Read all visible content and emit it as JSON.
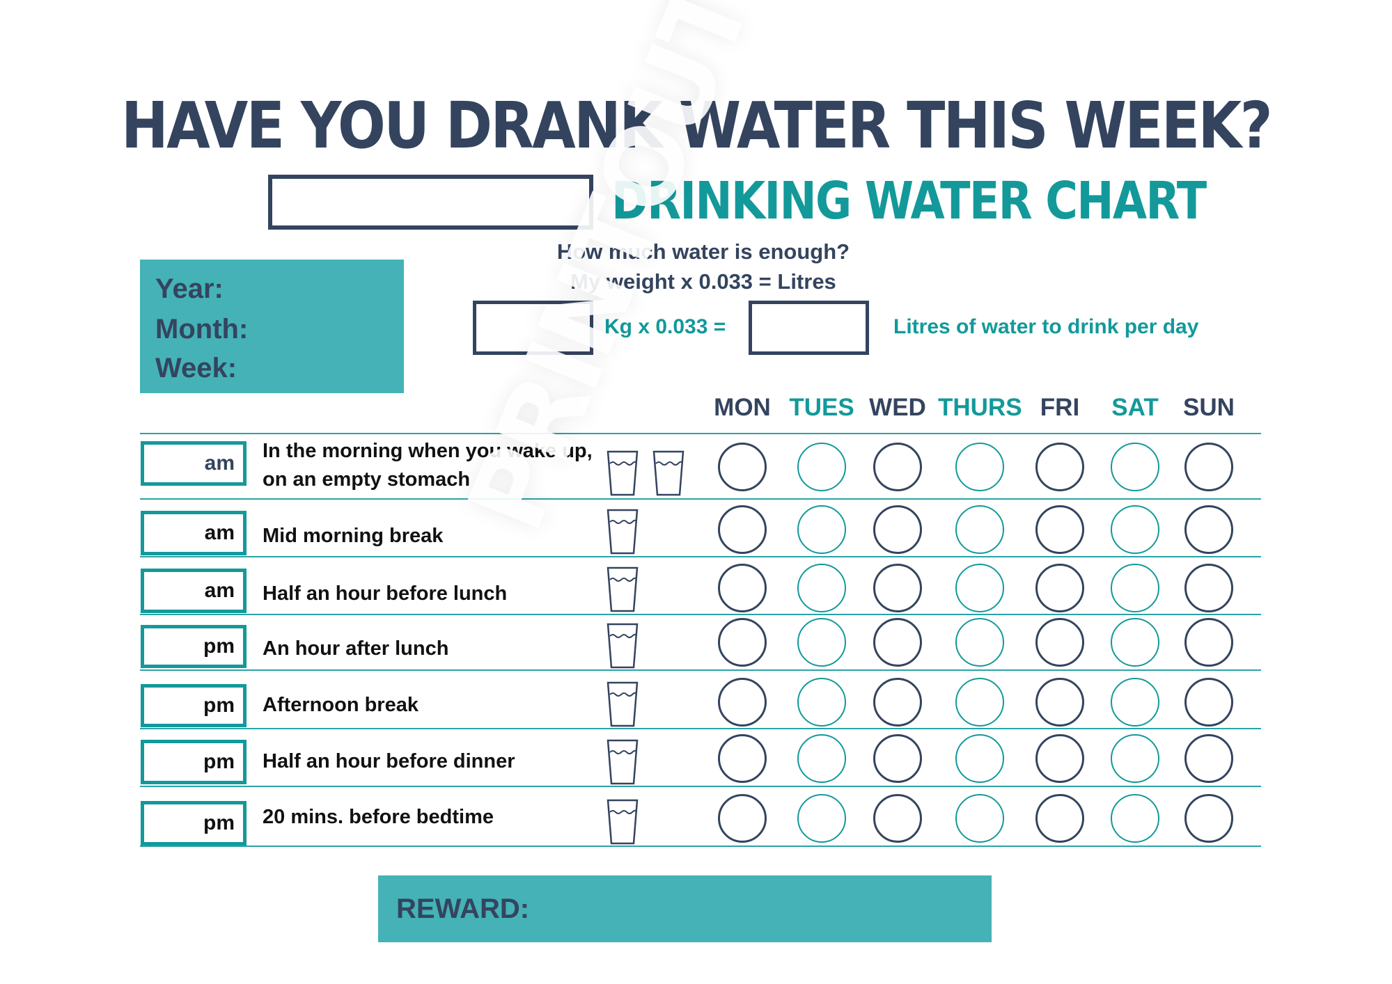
{
  "header": {
    "title": "HAVE YOU DRANK WATER THIS WEEK?",
    "subtitle": "DRINKING WATER CHART"
  },
  "formula": {
    "question": "How much water is enough?",
    "equation": "My weight x 0.033 = Litres",
    "kg_text": "Kg x 0.033 =",
    "litres_text": "Litres of water to drink per day"
  },
  "info_panel": {
    "year_label": "Year:",
    "month_label": "Month:",
    "week_label": "Week:"
  },
  "days": [
    {
      "label": "MON",
      "color": "#34445f"
    },
    {
      "label": "TUES",
      "color": "#13999a"
    },
    {
      "label": "WED",
      "color": "#34445f"
    },
    {
      "label": "THURS",
      "color": "#13999a"
    },
    {
      "label": "FRI",
      "color": "#34445f"
    },
    {
      "label": "SAT",
      "color": "#13999a"
    },
    {
      "label": "SUN",
      "color": "#34445f"
    }
  ],
  "rows": [
    {
      "time": "am",
      "label": "In the morning when you wake up, on an empty stomach",
      "glasses": 2
    },
    {
      "time": "am",
      "label": "Mid morning break",
      "glasses": 1
    },
    {
      "time": "am",
      "label": "Half an hour before lunch",
      "glasses": 1
    },
    {
      "time": "pm",
      "label": "An hour after lunch",
      "glasses": 1
    },
    {
      "time": "pm",
      "label": "Afternoon break",
      "glasses": 1
    },
    {
      "time": "pm",
      "label": "Half an hour before dinner",
      "glasses": 1
    },
    {
      "time": "pm",
      "label": "20 mins. before bedtime",
      "glasses": 1
    }
  ],
  "reward": {
    "label": "REWARD:"
  },
  "watermark": "PRINTOUT",
  "colors": {
    "navy": "#34445f",
    "teal": "#13999a",
    "panel": "#44b2b6"
  },
  "icons": {
    "glass": "water-glass-icon",
    "checkbox": "day-circle-checkbox"
  }
}
